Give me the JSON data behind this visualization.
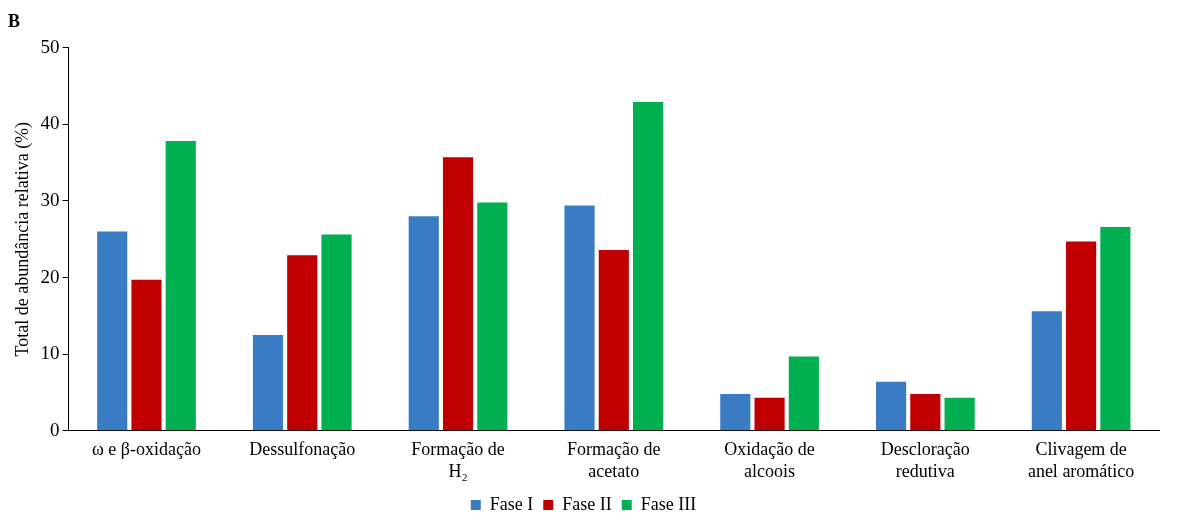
{
  "chart_data": {
    "type": "bar",
    "title": "B",
    "ylabel": "Total de abundância relativa (%)",
    "categories": [
      "ω e β-oxidação",
      "Dessulfonação",
      "Formação de\nH₂",
      "Formação de\nacetato",
      "Oxidação de\nalcoois",
      "Descloração\nredutiva",
      "Clivagem de\nanel aromático"
    ],
    "series": [
      {
        "name": "Fase I",
        "color": "#3a7cc4",
        "values": [
          26,
          12.5,
          28,
          29.4,
          4.8,
          6.4,
          15.6
        ]
      },
      {
        "name": "Fase II",
        "color": "#c00000",
        "values": [
          19.7,
          22.9,
          35.7,
          23.6,
          4.3,
          4.8,
          24.7
        ]
      },
      {
        "name": "Fase III",
        "color": "#00b050",
        "values": [
          37.8,
          25.6,
          29.8,
          42.9,
          9.7,
          4.3,
          26.6
        ]
      }
    ],
    "ylim": [
      0,
      50
    ],
    "yticks": [
      0,
      10,
      20,
      30,
      40,
      50
    ],
    "grid": false,
    "legend": "bottom"
  }
}
